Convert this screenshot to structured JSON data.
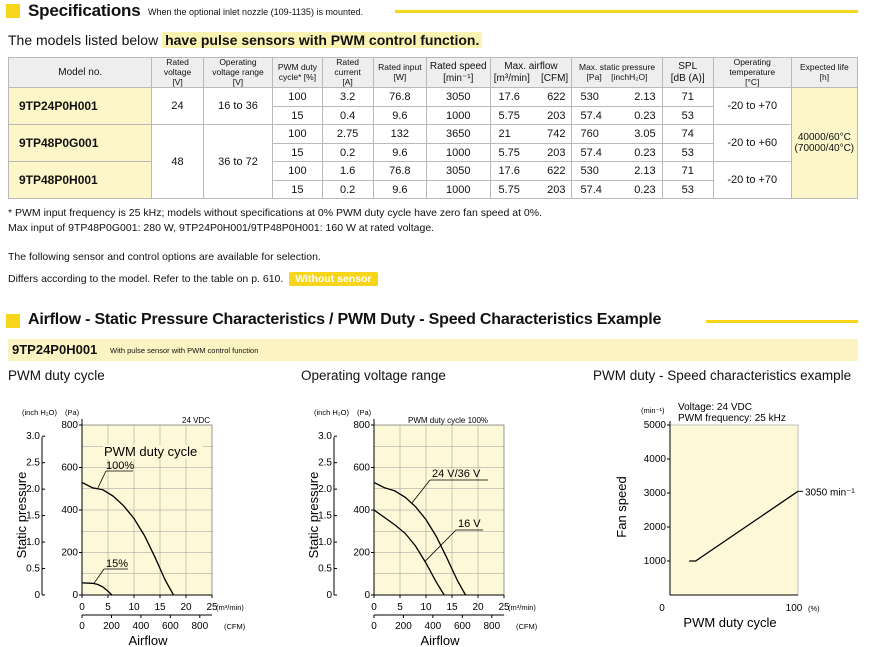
{
  "spec_header": {
    "title": "Specifications",
    "note": "When the optional inlet nozzle (109-1135) is mounted.",
    "accent_color": "#f6d51b"
  },
  "intro": {
    "prefix": "The models listed below",
    "highlight": "have pulse sensors with PWM control function."
  },
  "table": {
    "headers": {
      "model": "Model no.",
      "rated_voltage": "Rated voltage",
      "rated_voltage_unit": "[V]",
      "op_voltage": "Operating voltage range",
      "op_voltage_unit": "[V]",
      "pwm": "PWM duty",
      "pwm_unit": "cycle* [%]",
      "current": "Rated current",
      "current_unit": "[A]",
      "input": "Rated input",
      "input_unit": "[W]",
      "speed": "Rated speed",
      "speed_unit": "[min⁻¹]",
      "airflow": "Max. airflow",
      "airflow_unit1": "[m³/min]",
      "airflow_unit2": "[CFM]",
      "pressure": "Max. static pressure",
      "pressure_unit1": "[Pa]",
      "pressure_unit2": "[inchH₂O]",
      "spl": "SPL",
      "spl_unit": "[dB (A)]",
      "temp": "Operating temperature",
      "temp_unit": "[°C]",
      "life": "Expected life",
      "life_unit": "[h]"
    },
    "models": [
      {
        "name": "9TP24P0H001",
        "rated_voltage": "24",
        "op_range": "16 to 36",
        "temp": "-20 to +70",
        "rows": [
          {
            "pwm": "100",
            "current": "3.2",
            "input": "76.8",
            "speed": "3050",
            "air_m3": "17.6",
            "air_cfm": "622",
            "pa": "530",
            "inch": "2.13",
            "spl": "71"
          },
          {
            "pwm": "15",
            "current": "0.4",
            "input": "9.6",
            "speed": "1000",
            "air_m3": "5.75",
            "air_cfm": "203",
            "pa": "57.4",
            "inch": "0.23",
            "spl": "53"
          }
        ]
      },
      {
        "name": "9TP48P0G001",
        "temp": "-20 to +60",
        "rows": [
          {
            "pwm": "100",
            "current": "2.75",
            "input": "132",
            "speed": "3650",
            "air_m3": "21",
            "air_cfm": "742",
            "pa": "760",
            "inch": "3.05",
            "spl": "74"
          },
          {
            "pwm": "15",
            "current": "0.2",
            "input": "9.6",
            "speed": "1000",
            "air_m3": "5.75",
            "air_cfm": "203",
            "pa": "57.4",
            "inch": "0.23",
            "spl": "53"
          }
        ]
      },
      {
        "name": "9TP48P0H001",
        "temp": "-20 to +70",
        "rows": [
          {
            "pwm": "100",
            "current": "1.6",
            "input": "76.8",
            "speed": "3050",
            "air_m3": "17.6",
            "air_cfm": "622",
            "pa": "530",
            "inch": "2.13",
            "spl": "71"
          },
          {
            "pwm": "15",
            "current": "0.2",
            "input": "9.6",
            "speed": "1000",
            "air_m3": "5.75",
            "air_cfm": "203",
            "pa": "57.4",
            "inch": "0.23",
            "spl": "53"
          }
        ]
      }
    ],
    "shared_48v": {
      "rated_voltage": "48",
      "op_range": "36 to 72"
    },
    "life_line1": "40000/60°C",
    "life_line2": "(70000/40°C)"
  },
  "footnotes": [
    "* PWM input frequency is 25 kHz; models without specifications at 0% PWM duty cycle have zero fan speed at 0%.",
    "Max input of 9TP48P0G001: 280 W, 9TP24P0H001/9TP48P0H001: 160 W at rated voltage."
  ],
  "selection": {
    "line1": "The following sensor and control options are available for selection.",
    "line2": "Differs according to the model. Refer to the table on p. 610.",
    "badge": "Without sensor"
  },
  "charts_header": {
    "title": "Airflow - Static Pressure Characteristics / PWM Duty - Speed Characteristics Example"
  },
  "model_bar": {
    "model": "9TP24P0H001",
    "desc": "With pulse sensor with PWM control function"
  },
  "chart_titles": {
    "c1": "PWM duty cycle",
    "c2": "Operating voltage range",
    "c3": "PWM duty - Speed characteristics example"
  },
  "chart_data": [
    {
      "type": "line",
      "title": "PWM duty cycle",
      "xlabel": "Airflow",
      "ylabel": "Static pressure",
      "x_unit": "(m³/min)",
      "x2_unit": "(CFM)",
      "y_unit_inch": "(inch H₂O)",
      "y_unit_pa": "(Pa)",
      "top_note": "24 VDC",
      "x_ticks": [
        "0",
        "5",
        "10",
        "15",
        "20",
        "25"
      ],
      "x2_ticks": [
        "0",
        "200",
        "400",
        "600",
        "800"
      ],
      "y_pa_ticks": [
        "0",
        "200",
        "400",
        "600",
        "800"
      ],
      "y_inch_ticks": [
        "0",
        "0.5",
        "1.0",
        "1.5",
        "2.0",
        "2.5",
        "3.0"
      ],
      "xlim": [
        0,
        25
      ],
      "ylim": [
        0,
        800
      ],
      "grid": true,
      "annotation": "PWM duty cycle",
      "series": [
        {
          "name": "100%",
          "x": [
            0,
            2,
            4,
            6,
            8,
            10,
            12,
            14,
            16,
            17.6
          ],
          "y": [
            530,
            505,
            495,
            465,
            420,
            360,
            280,
            180,
            70,
            0
          ]
        },
        {
          "name": "15%",
          "x": [
            0,
            2,
            3,
            4,
            5,
            5.75
          ],
          "y": [
            57,
            55,
            50,
            38,
            18,
            0
          ]
        }
      ]
    },
    {
      "type": "line",
      "title": "Operating voltage range",
      "xlabel": "Airflow",
      "ylabel": "Static pressure",
      "x_unit": "(m³/min)",
      "x2_unit": "(CFM)",
      "y_unit_inch": "(inch H₂O)",
      "y_unit_pa": "(Pa)",
      "top_note": "PWM duty cycle 100%",
      "x_ticks": [
        "0",
        "5",
        "10",
        "15",
        "20",
        "25"
      ],
      "x2_ticks": [
        "0",
        "200",
        "400",
        "600",
        "800"
      ],
      "y_pa_ticks": [
        "0",
        "200",
        "400",
        "600",
        "800"
      ],
      "y_inch_ticks": [
        "0",
        "0.5",
        "1.0",
        "1.5",
        "2.0",
        "2.5",
        "3.0"
      ],
      "xlim": [
        0,
        25
      ],
      "ylim": [
        0,
        800
      ],
      "grid": true,
      "series": [
        {
          "name": "24 V/36 V",
          "x": [
            0,
            2,
            4,
            6,
            8,
            10,
            12,
            14,
            16,
            17.6
          ],
          "y": [
            530,
            505,
            490,
            460,
            415,
            355,
            275,
            175,
            70,
            0
          ]
        },
        {
          "name": "16 V",
          "x": [
            0,
            2,
            4,
            6,
            8,
            10,
            12,
            13.5
          ],
          "y": [
            400,
            365,
            330,
            290,
            230,
            150,
            60,
            0
          ]
        }
      ]
    },
    {
      "type": "line",
      "title": "PWM duty - Speed characteristics example",
      "xlabel": "PWM duty cycle",
      "ylabel": "Fan speed",
      "x_unit": "(%)",
      "y_unit": "(min⁻¹)",
      "info1": "Voltage: 24 VDC",
      "info2": "PWM frequency: 25 kHz",
      "x_ticks": [
        "0",
        "100"
      ],
      "y_ticks": [
        "1000",
        "2000",
        "3000",
        "4000",
        "5000"
      ],
      "xlim": [
        0,
        100
      ],
      "ylim": [
        0,
        5000
      ],
      "grid": false,
      "end_label": "3050 min⁻¹",
      "series": [
        {
          "x": [
            15,
            20,
            100
          ],
          "y": [
            1000,
            1000,
            3050
          ]
        }
      ]
    }
  ]
}
